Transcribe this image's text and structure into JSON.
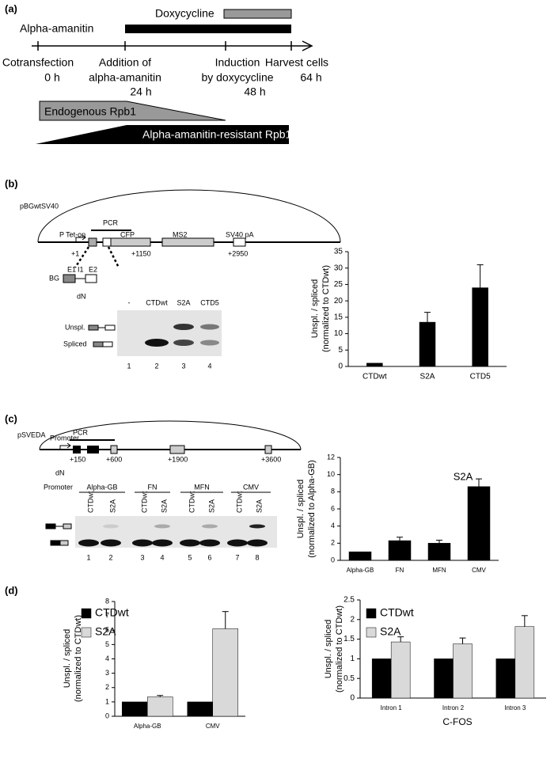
{
  "panel_labels": [
    "(a)",
    "(b)",
    "(c)",
    "(d)"
  ],
  "timeline": {
    "doxycycline": "Doxycycline",
    "alpha_amanitin": "Alpha-amanitin",
    "events": [
      [
        "Cotransfection",
        "0 h"
      ],
      [
        "Addition of",
        "alpha-amanitin",
        "24 h"
      ],
      [
        "Induction",
        "by doxycycline",
        "48 h"
      ],
      [
        "Harvest cells",
        "64 h"
      ]
    ],
    "endogenous": "Endogenous Rpb1",
    "resistant": "Alpha-amanitin-resistant Rpb1"
  },
  "construct_b": {
    "name": "pBGwtSV40",
    "pcr": "PCR",
    "elements": [
      "P Tet-on",
      "CFP",
      "MS2",
      "SV40 pA"
    ],
    "positions": [
      "+1",
      "+1150",
      "+2950"
    ],
    "bg": "BG",
    "exons": [
      "E1",
      "I1",
      "E2"
    ]
  },
  "gel_b": {
    "dn": "dN",
    "lanes": [
      "-",
      "CTDwt",
      "S2A",
      "CTD5"
    ],
    "bands": [
      "Unspl.",
      "Spliced"
    ],
    "numbers": [
      "1",
      "2",
      "3",
      "4"
    ]
  },
  "construct_c": {
    "name": "pSVEDA",
    "promoter": "Promoter",
    "pcr": "PCR",
    "positions": [
      "+150",
      "+600",
      "+1900",
      "+3600"
    ]
  },
  "gel_c": {
    "dn": "dN",
    "promoter": "Promoter",
    "groups": [
      "Alpha-GB",
      "FN",
      "MFN",
      "CMV"
    ],
    "lanes": [
      "CTDwt",
      "S2A",
      "CTDwt",
      "S2A",
      "CTDwt",
      "S2A",
      "CTDwt",
      "S2A"
    ],
    "numbers": [
      "1",
      "2",
      "3",
      "4",
      "5",
      "6",
      "7",
      "8"
    ]
  },
  "chart_data": [
    {
      "type": "bar",
      "ylabel": [
        "Unspl. / spliced",
        "(normalized to CTDwt)"
      ],
      "categories": [
        "CTDwt",
        "S2A",
        "CTD5"
      ],
      "values": [
        1,
        13.5,
        24
      ],
      "errors": [
        null,
        3,
        7
      ],
      "color": "#000000",
      "ylim": [
        0,
        35
      ],
      "yticks": [
        0,
        5,
        10,
        15,
        20,
        25,
        30,
        35
      ]
    },
    {
      "type": "bar",
      "title": "S2A",
      "ylabel": [
        "Unspl. / spliced",
        "(normalized to Alpha-GB)"
      ],
      "categories": [
        "Alpha-GB",
        "FN",
        "MFN",
        "CMV"
      ],
      "values": [
        1,
        2.3,
        2.0,
        8.6
      ],
      "errors": [
        null,
        0.4,
        0.35,
        0.9
      ],
      "color": "#000000",
      "ylim": [
        0,
        12
      ],
      "yticks": [
        0,
        2,
        4,
        6,
        8,
        10,
        12
      ]
    },
    {
      "type": "bar",
      "ylabel": [
        "Unspl. / spliced",
        "(normalized to CTDwt)"
      ],
      "categories": [
        "Alpha-GB",
        "CMV"
      ],
      "series": [
        {
          "name": "CTDwt",
          "color": "#000000",
          "values": [
            1,
            1
          ],
          "errors": [
            null,
            null
          ]
        },
        {
          "name": "S2A",
          "color": "#d9d9d9",
          "values": [
            1.35,
            6.1
          ],
          "errors": [
            0.1,
            1.2
          ]
        }
      ],
      "ylim": [
        0,
        8
      ],
      "yticks": [
        0,
        1,
        2,
        3,
        4,
        5,
        6,
        7,
        8
      ],
      "legend": "top-left"
    },
    {
      "type": "bar",
      "ylabel": [
        "Unspl. / spliced",
        "(normalized to CTDwt)"
      ],
      "xlabel": "C-FOS",
      "categories": [
        "Intron 1",
        "Intron 2",
        "Intron 3"
      ],
      "series": [
        {
          "name": "CTDwt",
          "color": "#000000",
          "values": [
            1,
            1,
            1
          ],
          "errors": [
            null,
            null,
            null
          ]
        },
        {
          "name": "S2A",
          "color": "#d9d9d9",
          "values": [
            1.43,
            1.38,
            1.82
          ],
          "errors": [
            0.13,
            0.15,
            0.28
          ]
        }
      ],
      "ylim": [
        0,
        2.5
      ],
      "yticks": [
        0,
        0.5,
        1,
        1.5,
        2,
        2.5
      ],
      "legend": "top-left"
    }
  ]
}
